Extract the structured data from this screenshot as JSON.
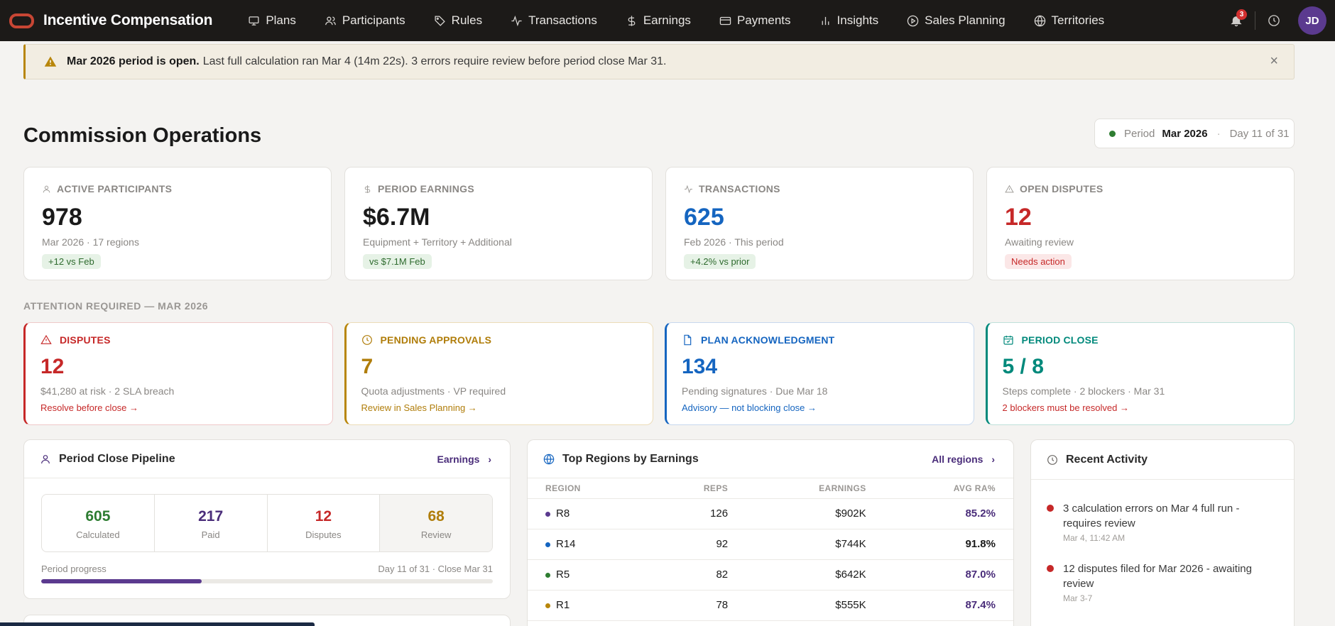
{
  "app": {
    "title": "Incentive Compensation"
  },
  "nav": {
    "items": [
      {
        "label": "Plans",
        "icon": "monitor-icon"
      },
      {
        "label": "Participants",
        "icon": "users-icon"
      },
      {
        "label": "Rules",
        "icon": "tag-icon"
      },
      {
        "label": "Transactions",
        "icon": "activity-icon"
      },
      {
        "label": "Earnings",
        "icon": "dollar-icon"
      },
      {
        "label": "Payments",
        "icon": "card-icon"
      },
      {
        "label": "Insights",
        "icon": "bar-chart-icon"
      },
      {
        "label": "Sales Planning",
        "icon": "play-circle-icon"
      },
      {
        "label": "Territories",
        "icon": "globe-icon"
      }
    ],
    "notifications_count": "3",
    "avatar_initials": "JD"
  },
  "alert": {
    "bold": "Mar 2026 period is open.",
    "text": "Last full calculation ran Mar 4 (14m 22s). 3 errors require review before period close Mar 31.",
    "close": "×"
  },
  "page": {
    "title": "Commission Operations"
  },
  "period": {
    "label": "Period",
    "value": "Mar 2026",
    "sep": "·",
    "day": "Day 11 of 31",
    "status_color": "#2e7d32"
  },
  "kpis": [
    {
      "label": "ACTIVE PARTICIPANTS",
      "value": "978",
      "sub": "Mar 2026 · 17 regions",
      "pill": "+12 vs Feb"
    },
    {
      "label": "PERIOD EARNINGS",
      "value": "$6.7M",
      "sub": "Equipment + Territory + Additional",
      "pill": "vs $7.1M Feb"
    },
    {
      "label": "TRANSACTIONS",
      "value": "625",
      "sub": "Feb 2026 · This period",
      "pill": "+4.2% vs prior"
    },
    {
      "label": "OPEN DISPUTES",
      "value": "12",
      "sub": "Awaiting review",
      "pill": "Needs action"
    }
  ],
  "attention": {
    "label": "ATTENTION REQUIRED — MAR 2026",
    "cards": [
      {
        "title": "DISPUTES",
        "value": "12",
        "sub": "$41,280 at risk · 2 SLA breach",
        "link": "Resolve before close →"
      },
      {
        "title": "PENDING APPROVALS",
        "value": "7",
        "sub": "Quota adjustments · VP required",
        "link": "Review in Sales Planning →"
      },
      {
        "title": "PLAN ACKNOWLEDGMENT",
        "value": "134",
        "sub": "Pending signatures · Due Mar 18",
        "link": "Advisory — not blocking close →"
      },
      {
        "title": "PERIOD CLOSE",
        "value": "5 / 8",
        "sub": "Steps complete · 2 blockers · Mar 31",
        "link": "2 blockers must be resolved →"
      }
    ]
  },
  "pipeline": {
    "title": "Period Close Pipeline",
    "link": "Earnings",
    "stats": [
      {
        "value": "605",
        "label": "Calculated",
        "color": "#2e7d32"
      },
      {
        "value": "217",
        "label": "Paid",
        "color": "#4a2d7a"
      },
      {
        "value": "12",
        "label": "Disputes",
        "color": "#c62828"
      },
      {
        "value": "68",
        "label": "Review",
        "color": "#b07d0a"
      }
    ],
    "progress_label": "Period progress",
    "progress_right": "Day 11 of 31 · Close Mar 31",
    "progress_fraction": 0.355
  },
  "regions": {
    "title": "Top Regions by Earnings",
    "link": "All regions",
    "columns": [
      "REGION",
      "REPS",
      "EARNINGS",
      "AVG RA%"
    ],
    "rows": [
      {
        "region": "R8",
        "reps": "126",
        "earnings": "$902K",
        "ra": "85.2%",
        "dot": "#5b3a8f",
        "ra_purple": true
      },
      {
        "region": "R14",
        "reps": "92",
        "earnings": "$744K",
        "ra": "91.8%",
        "dot": "#1565c0",
        "ra_purple": false
      },
      {
        "region": "R5",
        "reps": "82",
        "earnings": "$642K",
        "ra": "87.0%",
        "dot": "#2e7d32",
        "ra_purple": true
      },
      {
        "region": "R1",
        "reps": "78",
        "earnings": "$555K",
        "ra": "87.4%",
        "dot": "#b8860b",
        "ra_purple": true
      }
    ]
  },
  "activity": {
    "title": "Recent Activity",
    "items": [
      {
        "text": "3 calculation errors on Mar 4 full run - requires review",
        "time": "Mar 4, 11:42 AM"
      },
      {
        "text": "12 disputes filed for Mar 2026 - awaiting review",
        "time": "Mar 3-7"
      }
    ]
  }
}
